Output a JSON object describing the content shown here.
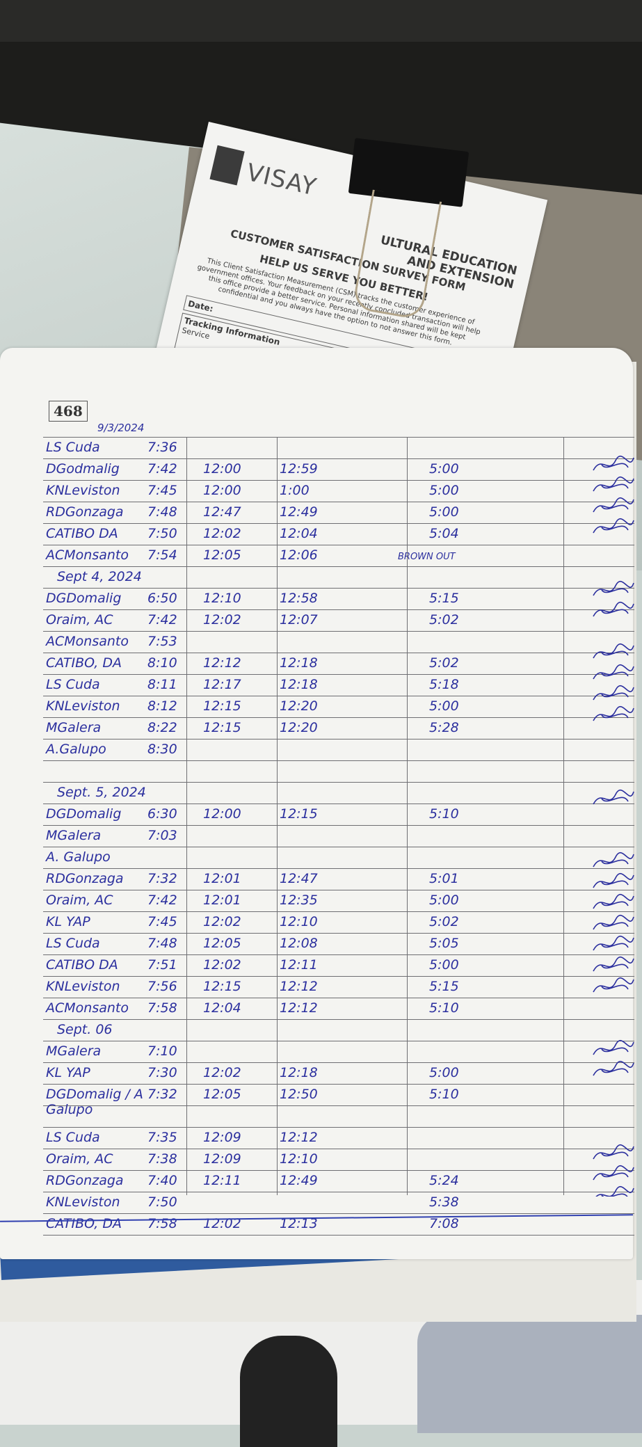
{
  "form": {
    "brand": "VISAY",
    "department": [
      "ULTURAL EDUCATION",
      "AND EXTENSION"
    ],
    "title": "CUSTOMER SATISFACTION SURVEY FORM",
    "subtitle": "HELP US SERVE YOU BETTER!",
    "paragraph": "This Client Satisfaction Measurement (CSM) tracks the customer experience of government offices. Your feedback on your recently concluded transaction will help this office provide a better service. Personal information shared will be kept confidential and you always have the option to not answer this form.",
    "date_label": "Date:",
    "tracking_label": "Tracking Information",
    "service_label": "Service"
  },
  "ledger": {
    "page_number": "468",
    "page_date": "9/3/2024",
    "ink_color": "#2b2f9e",
    "rows": [
      {
        "name": "LS Cuda",
        "in": "7:36"
      },
      {
        "name": "DGodmalig",
        "in": "7:42",
        "am_out": "12:00",
        "pm_in": "12:59",
        "pm_out": "5:00"
      },
      {
        "name": "KNLeviston",
        "in": "7:45",
        "am_out": "12:00",
        "pm_in": "1:00",
        "pm_out": "5:00"
      },
      {
        "name": "RDGonzaga",
        "in": "7:48",
        "am_out": "12:47",
        "pm_in": "12:49",
        "pm_out": "5:00"
      },
      {
        "name": "CATIBO DA",
        "in": "7:50",
        "am_out": "12:02",
        "pm_in": "12:04",
        "pm_out": "5:04"
      },
      {
        "name": "ACMonsanto",
        "in": "7:54",
        "am_out": "12:05",
        "pm_in": "12:06",
        "note": "BROWN OUT"
      },
      {
        "date": "Sept 4, 2024"
      },
      {
        "name": "DGDomalig",
        "in": "6:50",
        "am_out": "12:10",
        "pm_in": "12:58",
        "pm_out": "5:15"
      },
      {
        "name": "Oraim, AC",
        "in": "7:42",
        "am_out": "12:02",
        "pm_in": "12:07",
        "pm_out": "5:02"
      },
      {
        "name": "ACMonsanto",
        "in": "7:53"
      },
      {
        "name": "CATIBO, DA",
        "in": "8:10",
        "am_out": "12:12",
        "pm_in": "12:18",
        "pm_out": "5:02"
      },
      {
        "name": "LS Cuda",
        "in": "8:11",
        "am_out": "12:17",
        "pm_in": "12:18",
        "pm_out": "5:18"
      },
      {
        "name": "KNLeviston",
        "in": "8:12",
        "am_out": "12:15",
        "pm_in": "12:20",
        "pm_out": "5:00"
      },
      {
        "name": "MGalera",
        "in": "8:22",
        "am_out": "12:15",
        "pm_in": "12:20",
        "pm_out": "5:28"
      },
      {
        "name": "A.Galupo",
        "in": "8:30"
      },
      {},
      {
        "date": "Sept. 5, 2024"
      },
      {
        "name": "DGDomalig",
        "in": "6:30",
        "am_out": "12:00",
        "pm_in": "12:15",
        "pm_out": "5:10"
      },
      {
        "name": "MGalera",
        "in": "7:03"
      },
      {
        "name": "A. Galupo"
      },
      {
        "name": "RDGonzaga",
        "in": "7:32",
        "am_out": "12:01",
        "pm_in": "12:47",
        "pm_out": "5:01"
      },
      {
        "name": "Oraim, AC",
        "in": "7:42",
        "am_out": "12:01",
        "pm_in": "12:35",
        "pm_out": "5:00"
      },
      {
        "name": "KL YAP",
        "in": "7:45",
        "am_out": "12:02",
        "pm_in": "12:10",
        "pm_out": "5:02"
      },
      {
        "name": "LS Cuda",
        "in": "7:48",
        "am_out": "12:05",
        "pm_in": "12:08",
        "pm_out": "5:05"
      },
      {
        "name": "CATIBO DA",
        "in": "7:51",
        "am_out": "12:02",
        "pm_in": "12:11",
        "pm_out": "5:00"
      },
      {
        "name": "KNLeviston",
        "in": "7:56",
        "am_out": "12:15",
        "pm_in": "12:12",
        "pm_out": "5:15"
      },
      {
        "name": "ACMonsanto",
        "in": "7:58",
        "am_out": "12:04",
        "pm_in": "12:12",
        "pm_out": "5:10"
      },
      {
        "date": "Sept. 06"
      },
      {
        "name": "MGalera",
        "in": "7:10"
      },
      {
        "name": "KL YAP",
        "in": "7:30",
        "am_out": "12:02",
        "pm_in": "12:18",
        "pm_out": "5:00"
      },
      {
        "name": "DGDomalig / A Galupo",
        "in": "7:32",
        "am_out": "12:05",
        "pm_in": "12:50",
        "pm_out": "5:10"
      },
      {},
      {
        "name": "LS Cuda",
        "in": "7:35",
        "am_out": "12:09",
        "pm_in": "12:12"
      },
      {
        "name": "Oraim, AC",
        "in": "7:38",
        "am_out": "12:09",
        "pm_in": "12:10"
      },
      {
        "name": "RDGonzaga",
        "in": "7:40",
        "am_out": "12:11",
        "pm_in": "12:49",
        "pm_out": "5:24"
      },
      {
        "name": "KNLeviston",
        "in": "7:50",
        "pm_out": "5:38"
      },
      {
        "name": "CATIBO, DA",
        "in": "7:58",
        "am_out": "12:02",
        "pm_in": "12:13",
        "pm_out": "7:08"
      }
    ]
  }
}
